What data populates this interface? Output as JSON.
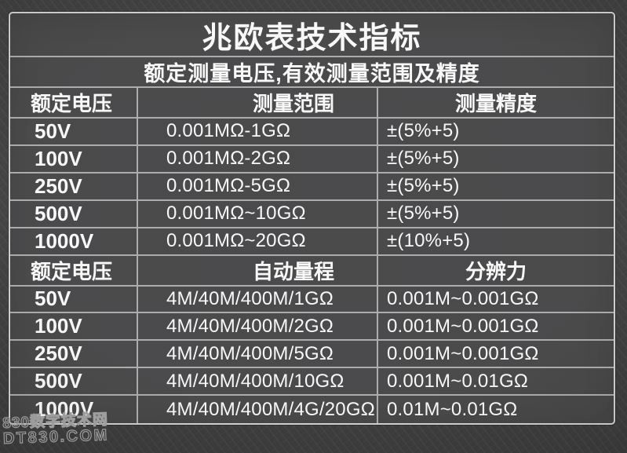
{
  "title": "兆欧表技术指标",
  "subtitle": "额定测量电压,有效测量范围及精度",
  "sections": [
    {
      "headers": [
        "额定电压",
        "测量范围",
        "测量精度"
      ],
      "rows": [
        [
          "50V",
          "0.001MΩ-1GΩ",
          "±(5%+5)"
        ],
        [
          "100V",
          "0.001MΩ-2GΩ",
          "±(5%+5)"
        ],
        [
          "250V",
          "0.001MΩ-5GΩ",
          "±(5%+5)"
        ],
        [
          "500V",
          "0.001MΩ~10GΩ",
          "±(5%+5)"
        ],
        [
          "1000V",
          "0.001MΩ~20GΩ",
          "±(10%+5)"
        ]
      ]
    },
    {
      "headers": [
        "额定电压",
        "自动量程",
        "分辨力"
      ],
      "rows": [
        [
          "50V",
          "4M/40M/400M/1GΩ",
          "0.001M~0.001GΩ"
        ],
        [
          "100V",
          "4M/40M/400M/2GΩ",
          "0.001M~0.001GΩ"
        ],
        [
          "250V",
          "4M/40M/400M/5GΩ",
          "0.001M~0.001GΩ"
        ],
        [
          "500V",
          "4M/40M/400M/10GΩ",
          "0.001M~0.01GΩ"
        ],
        [
          "1000V",
          "4M/40M/400M/4G/20GΩ",
          "0.01M~0.01GΩ"
        ]
      ]
    }
  ],
  "watermark": {
    "line1": "830数字技术网",
    "line2": "DT830.COM"
  },
  "colors": {
    "background": "#3a3a3b",
    "table_background": "#474748",
    "grid_line": "#c6c6c6",
    "outer_border": "#cfcfcf",
    "text": "#f8f8f8",
    "watermark": "#a1a1a1"
  }
}
